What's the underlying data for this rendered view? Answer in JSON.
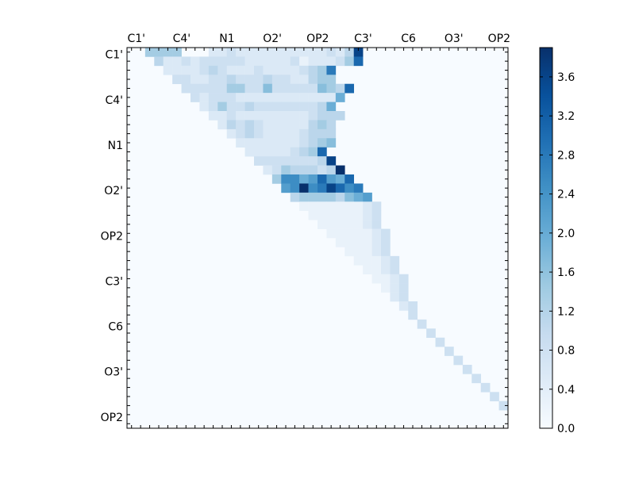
{
  "chart_data": {
    "type": "heatmap",
    "title": "",
    "xlabel": "",
    "ylabel": "",
    "grid_size": 42,
    "x_tick_labels": [
      "C1'",
      "C4'",
      "N1",
      "O2'",
      "OP2",
      "C3'",
      "C6",
      "O3'",
      "OP2"
    ],
    "x_tick_positions": [
      0.5,
      5.5,
      10.5,
      15.5,
      20.5,
      25.5,
      30.5,
      35.5,
      40.5
    ],
    "y_tick_labels": [
      "C1'",
      "C4'",
      "N1",
      "O2'",
      "OP2",
      "C3'",
      "C6",
      "O3'",
      "OP2"
    ],
    "y_tick_positions": [
      0.5,
      5.5,
      10.5,
      15.5,
      20.5,
      25.5,
      30.5,
      35.5,
      40.5
    ],
    "colorbar": {
      "min": 0.0,
      "max": 3.9,
      "ticks": [
        "0.0",
        "0.4",
        "0.8",
        "1.2",
        "1.6",
        "2.0",
        "2.4",
        "2.8",
        "3.2",
        "3.6"
      ],
      "colors": [
        "#f7fbff",
        "#deebf7",
        "#c6dbef",
        "#9ecae1",
        "#6baed6",
        "#4292c6",
        "#2171b5",
        "#08519c",
        "#08306b"
      ]
    },
    "rows": [
      "00.55.5.5.00.0.2.2.3.2.2.2.2.2.2.2.2.2.2.3.2.4.D",
      "000.4.22.32.33.3.3.3.2.22.2.2.3.1.2.2.2.3.5.B",
      "0000.2.2.2.2.3.4.3.2.2.2.3.2.2.2.2.3.4.5.A",
      "00000.33.2.2.3.3.4.3.3.3.4.3.3.2.2.4.5.5",
      "000000.3.3.3.3.3.5.5.3.3.6.3.3.3.3.3.6.5.4.B",
      "0000000.3.2.3.3.3.2.2.2.2.2.2.2.2.2.2.2.7",
      "00000000.2.3.5.3.3.4.3.3.3.3.3.3.3.4.7",
      "000000000.2.2.3.2.2.2.2.2.2.2.2.3.4.4.4",
      "0000000000.2.4.3.4.3.2.2.2.2.2.4.5.4",
      "00000000000.2.3.4.3.2.2.2.2.3.4.4.4",
      "000000000000.2.2.2.2.2.2.2.3.4.5.6",
      "0000000000000.2.2.2.2.2.3.4.5.B",
      "00000000000000.3.3.3.3.3.3.3.4.D",
      "000000000000000.2.3.5.4.4.4.3.4.E",
      "0000000000000000.5.9.9.7.8.B.8.7.B",
      "00000000000000000.8.9.E.9.A.D.B.9.A",
      "000000000000000000.4.5.5.5.5.4.6.7.8",
      "0000000000000000000.1.1.1.1.1.1.1.2.3",
      "00000000000000000000.1.1.1.1.1.1.2.3",
      "000000000000000000000.1.1.1.1.1.2.3",
      "0000000000000000000000.1.1.1.1.1.2.3",
      "00000000000000000000000.1.1.1.1.2.3",
      "000000000000000000000000.1.1.1.2.3",
      "0000000000000000000000000.1.1.1.2.3",
      "00000000000000000000000000.1.1.2.3",
      "000000000000000000000000000.1.1.2.3",
      "0000000000000000000000000000.1.2.3",
      "00000000000000000000000000000.2.3",
      "000000000000000000000000000000.2.3",
      "0000000000000000000000000000000.3",
      "00000000000000000000000000000000.3",
      "000000000000000000000000000000000.3",
      "0000000000000000000000000000000000.3",
      "00000000000000000000000000000000000.3",
      "000000000000000000000000000000000000.3",
      "0000000000000000000000000000000000000.3",
      "00000000000000000000000000000000000000.3",
      "000000000000000000000000000000000000000.3",
      "0000000000000000000000000000000000000000.3",
      "00000000000000000000000000000000000000000.3",
      "000000000000000000000000000000000000000000",
      "000000000000000000000000000000000000000000"
    ],
    "values_note": ""
  }
}
